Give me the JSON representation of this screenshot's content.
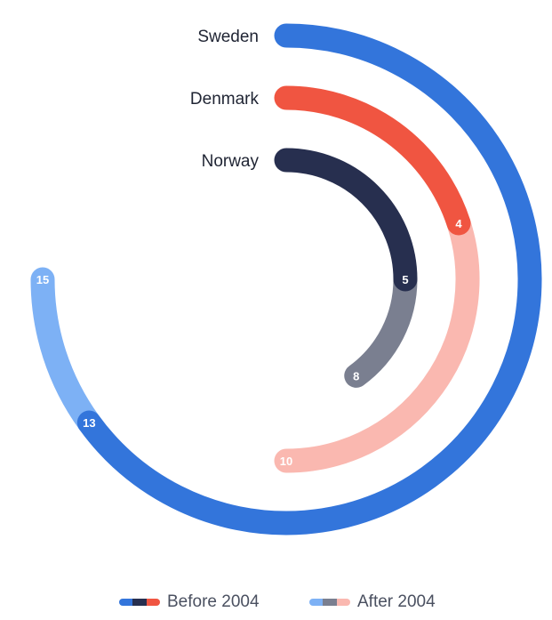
{
  "chart_data": {
    "type": "radial-bar",
    "title": "",
    "unit_max": 20,
    "series": [
      {
        "name": "Sweden",
        "before": 13,
        "after": 15,
        "color_before": "#3375db",
        "color_after": "#7db1f5"
      },
      {
        "name": "Denmark",
        "before": 4,
        "after": 10,
        "color_before": "#f05541",
        "color_after": "#fab8b0"
      },
      {
        "name": "Norway",
        "before": 5,
        "after": 8,
        "color_before": "#272f4f",
        "color_after": "#7a7f90"
      }
    ],
    "legend": {
      "position": "bottom-center",
      "before_label": "Before 2004",
      "after_label": "After 2004"
    }
  }
}
